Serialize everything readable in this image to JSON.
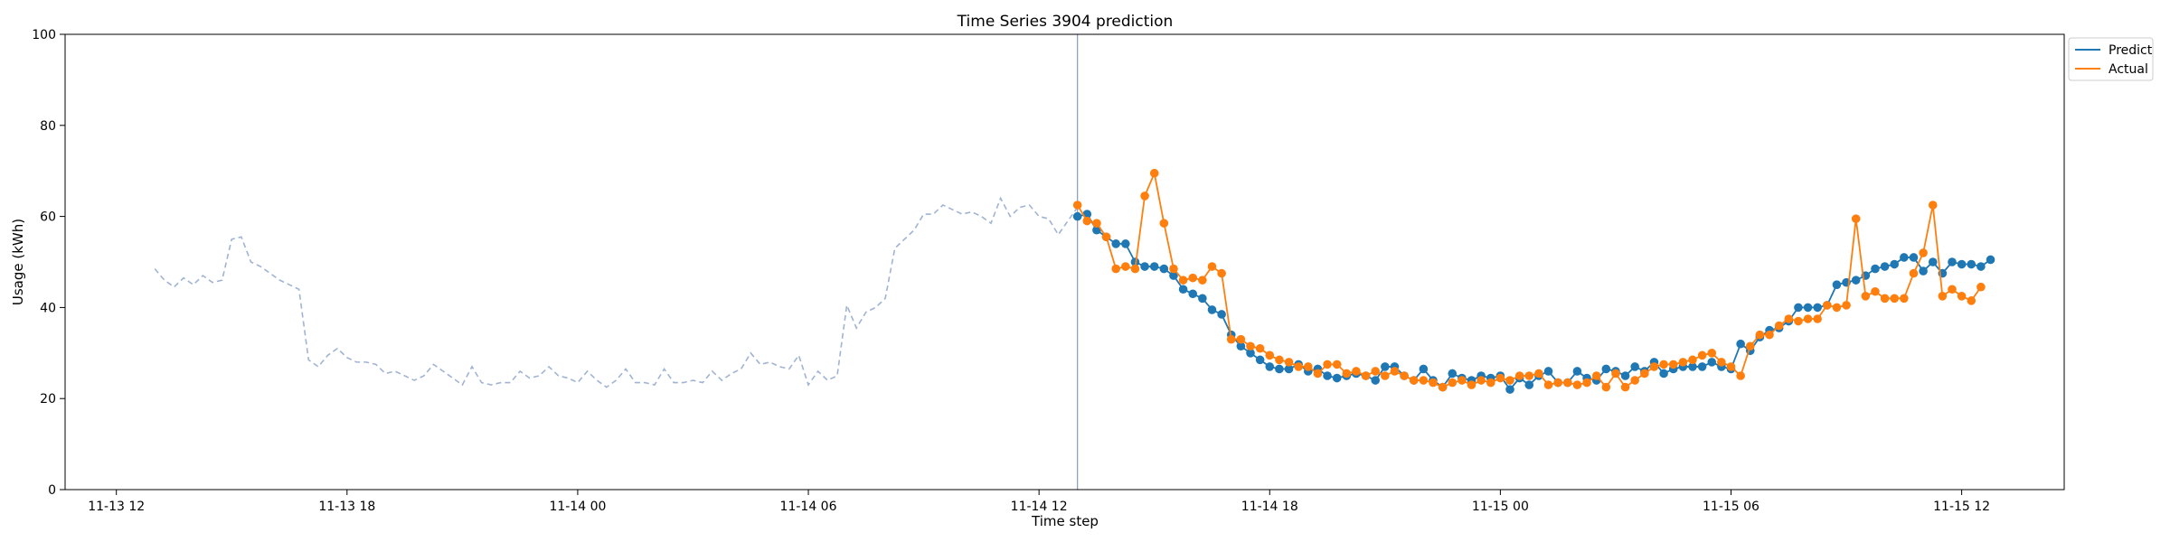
{
  "chart_data": {
    "type": "line",
    "title": "Time Series 3904 prediction",
    "xlabel": "Time step",
    "ylabel": "Usage (kWh)",
    "ylim": [
      0,
      100
    ],
    "yticks": [
      0,
      20,
      40,
      60,
      80,
      100
    ],
    "xlim": [
      "2024-11-13T10:40",
      "2024-11-15T14:40"
    ],
    "xticks": [
      {
        "t": "2024-11-13T12:00",
        "label": "11-13 12"
      },
      {
        "t": "2024-11-13T18:00",
        "label": "11-13 18"
      },
      {
        "t": "2024-11-14T00:00",
        "label": "11-14 00"
      },
      {
        "t": "2024-11-14T06:00",
        "label": "11-14 06"
      },
      {
        "t": "2024-11-14T12:00",
        "label": "11-14 12"
      },
      {
        "t": "2024-11-14T18:00",
        "label": "11-14 18"
      },
      {
        "t": "2024-11-15T00:00",
        "label": "11-15 00"
      },
      {
        "t": "2024-11-15T06:00",
        "label": "11-15 06"
      },
      {
        "t": "2024-11-15T12:00",
        "label": "11-15 12"
      }
    ],
    "grid": false,
    "legend_position": "top-right",
    "forecast_start": "2024-11-14T13:00",
    "colors": {
      "history": "#a0b4d2",
      "predict": "#1f77b4",
      "actual": "#ff7f0e",
      "divider": "#8898c8"
    },
    "history": {
      "start": "2024-11-13T13:00",
      "step_minutes": 15,
      "values": [
        48.5,
        46,
        44.5,
        46.5,
        45,
        47,
        45.5,
        46,
        55,
        55.5,
        50,
        49,
        47.5,
        46,
        45,
        44,
        28.5,
        27,
        29.5,
        31,
        29,
        28,
        28,
        27.5,
        25.5,
        26,
        25,
        24,
        25,
        27.5,
        26,
        24.5,
        23,
        27,
        23.5,
        23,
        23.5,
        23.5,
        26,
        24.5,
        25,
        27,
        25,
        24.5,
        23.5,
        26,
        24,
        22.5,
        24,
        26.5,
        23.5,
        23.5,
        23,
        26.5,
        23.5,
        23.5,
        24,
        23.5,
        26,
        24,
        25.5,
        26.5,
        30,
        27.5,
        28,
        27,
        26.5,
        29.5,
        23,
        26,
        24,
        25,
        40.5,
        35.5,
        39,
        40,
        42,
        53,
        55,
        57,
        60.5,
        60.5,
        62.5,
        61.5,
        60.5,
        61,
        60,
        58.5,
        64,
        60,
        62,
        62.5,
        60,
        59.5,
        56,
        59,
        62
      ]
    },
    "series": [
      {
        "name": "Predict",
        "start": "2024-11-14T13:00",
        "step_minutes": 15,
        "values": [
          60,
          60.5,
          57,
          55.5,
          54,
          54,
          50,
          49,
          49,
          48.5,
          47,
          44,
          43,
          42,
          39.5,
          38.5,
          34,
          31.5,
          30,
          28.5,
          27,
          26.5,
          26.5,
          27.5,
          26,
          26.5,
          25,
          24.5,
          25,
          25.5,
          25,
          24,
          27,
          27,
          25,
          24,
          26.5,
          24,
          22.5,
          25.5,
          24.5,
          24,
          25,
          24.5,
          25,
          22,
          24.5,
          23,
          25,
          26,
          23.5,
          23.5,
          26,
          24.5,
          24,
          26.5,
          26,
          25,
          27,
          26,
          28,
          25.5,
          26.5,
          27,
          27,
          27,
          28,
          27,
          26.5,
          32,
          30.5,
          33.5,
          35,
          35.5,
          37,
          40,
          40,
          40,
          40.5,
          45,
          45.5,
          46,
          47,
          48.5,
          49,
          49.5,
          51,
          51,
          48,
          50,
          47.5,
          50,
          49.5,
          49.5,
          49,
          50.5
        ]
      },
      {
        "name": "Actual",
        "start": "2024-11-14T13:00",
        "step_minutes": 15,
        "values": [
          62.5,
          59,
          58.5,
          55.5,
          48.5,
          49,
          48.5,
          64.5,
          69.5,
          58.5,
          48.5,
          46,
          46.5,
          46,
          49,
          47.5,
          33,
          33,
          31.5,
          31,
          29.5,
          28.5,
          28,
          27,
          27,
          25.5,
          27.5,
          27.5,
          25.5,
          26,
          25,
          26,
          25,
          26,
          25,
          24,
          24,
          23.5,
          22.5,
          23.5,
          24,
          23,
          24,
          23.5,
          24.5,
          24,
          25,
          25,
          25.5,
          23,
          23.5,
          23.5,
          23,
          23.5,
          25,
          22.5,
          25.5,
          22.5,
          24,
          25.5,
          27,
          27.5,
          27.5,
          28,
          28.5,
          29.5,
          30,
          28,
          27,
          25,
          31.5,
          34,
          34,
          36,
          37.5,
          37,
          37.5,
          37.5,
          40.5,
          40,
          40.5,
          59.5,
          42.5,
          43.5,
          42,
          42,
          42,
          47.5,
          52,
          62.5,
          42.5,
          44,
          42.5,
          41.5,
          44.5
        ]
      }
    ]
  }
}
